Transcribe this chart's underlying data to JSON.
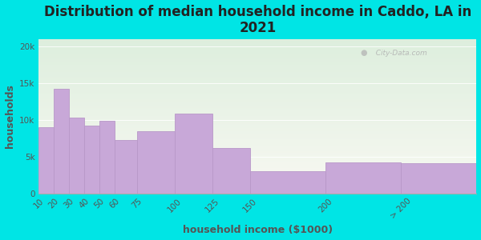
{
  "title": "Distribution of median household income in Caddo, LA in\n2021",
  "xlabel": "household income ($1000)",
  "ylabel": "households",
  "bar_left_edges": [
    10,
    20,
    30,
    40,
    50,
    60,
    75,
    100,
    125,
    150,
    200,
    250
  ],
  "bar_widths": [
    10,
    10,
    10,
    10,
    10,
    15,
    25,
    25,
    25,
    50,
    50,
    50
  ],
  "bar_labels": [
    "10",
    "20",
    "30",
    "40",
    "50",
    "60",
    "75",
    "100",
    "125",
    "150",
    "200",
    "> 200"
  ],
  "values": [
    9000,
    14200,
    10300,
    9200,
    9900,
    7200,
    8500,
    10800,
    6200,
    3000,
    4200,
    4100
  ],
  "bar_color": "#c8a8d8",
  "bar_edge_color": "#b898c8",
  "background_color": "#00e5e5",
  "plot_bg_top": "#ddeedd",
  "plot_bg_bottom": "#f8f8f2",
  "yticks": [
    0,
    5000,
    10000,
    15000,
    20000
  ],
  "ytick_labels": [
    "0",
    "5k",
    "10k",
    "15k",
    "20k"
  ],
  "ylim": [
    0,
    21000
  ],
  "xlim": [
    10,
    300
  ],
  "xtick_positions": [
    10,
    20,
    30,
    40,
    50,
    60,
    75,
    100,
    125,
    150,
    200,
    250
  ],
  "xtick_labels": [
    "10",
    "20",
    "30",
    "40",
    "50",
    "60",
    "75",
    "100",
    "125",
    "150",
    "200",
    "> 200"
  ],
  "title_fontsize": 12,
  "axis_label_fontsize": 9,
  "tick_fontsize": 7.5,
  "watermark_text": "City-Data.com"
}
